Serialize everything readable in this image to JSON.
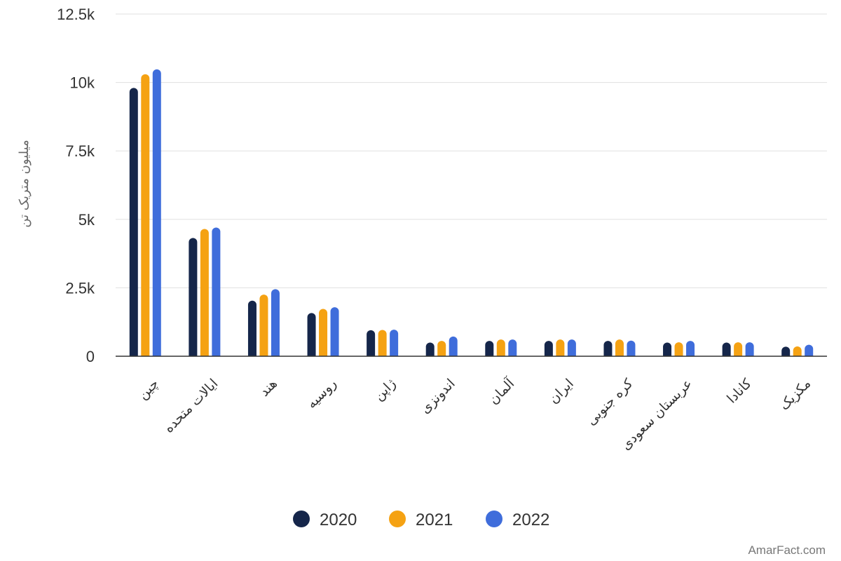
{
  "chart_data": {
    "type": "bar",
    "ylabel": "میلیون متریک تن",
    "ylim": [
      0,
      12500
    ],
    "yticks": [
      {
        "value": 0,
        "label": "0"
      },
      {
        "value": 2500,
        "label": "2.5k"
      },
      {
        "value": 5000,
        "label": "5k"
      },
      {
        "value": 7500,
        "label": "7.5k"
      },
      {
        "value": 10000,
        "label": "10k"
      },
      {
        "value": 12500,
        "label": "12.5k"
      }
    ],
    "categories": [
      "چین",
      "ایالات متحده",
      "هند",
      "روسیه",
      "ژاپن",
      "اندونزی",
      "آلمان",
      "ایران",
      "کره جنوبی",
      "عربستان سعودی",
      "کانادا",
      "مکزیک"
    ],
    "series": [
      {
        "name": "2020",
        "color": "#15264a",
        "values": [
          9800,
          4320,
          2030,
          1580,
          950,
          500,
          560,
          560,
          560,
          500,
          500,
          350
        ]
      },
      {
        "name": "2021",
        "color": "#f5a213",
        "values": [
          10300,
          4650,
          2250,
          1730,
          960,
          560,
          610,
          610,
          610,
          510,
          510,
          360
        ]
      },
      {
        "name": "2022",
        "color": "#3f6ddb",
        "values": [
          10480,
          4700,
          2450,
          1790,
          970,
          720,
          610,
          610,
          570,
          560,
          510,
          420
        ]
      }
    ],
    "legend_position": "bottom",
    "grid": true
  },
  "source": "AmarFact.com"
}
